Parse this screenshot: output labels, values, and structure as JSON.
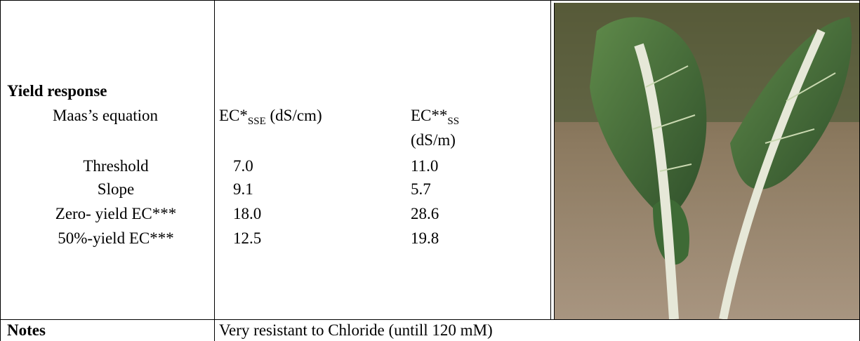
{
  "table": {
    "title": "Yield response",
    "equation_label": "Maas’s equation",
    "col1": {
      "main": "EC*",
      "sub": "SSE",
      "unit": "(dS/cm)"
    },
    "col2": {
      "main": "EC**",
      "sub": "SS",
      "unit": "(dS/m)"
    },
    "rows": [
      [
        "Threshold",
        "7.0",
        "11.0"
      ],
      [
        "Slope",
        "9.1",
        "5.7"
      ],
      [
        "Zero- yield EC***",
        "18.0",
        "28.6"
      ],
      [
        "50%-yield EC***",
        "12.5",
        "19.8"
      ]
    ],
    "notes_label": "Notes",
    "notes": "Very resistant to Chloride (untill 120 mM)"
  }
}
